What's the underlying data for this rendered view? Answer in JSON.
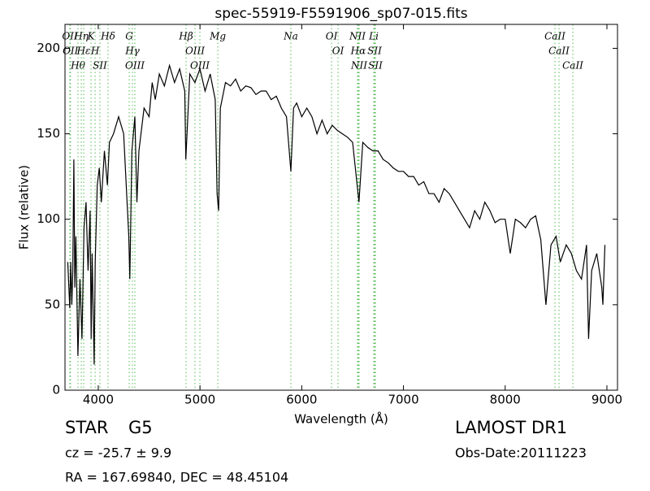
{
  "chart_data": {
    "type": "line",
    "title": "spec-55919-F5591906_sp07-015.fits",
    "x_label": "Wavelength (Å)",
    "y_label": "Flux (relative)",
    "xlim": [
      3673,
      9104
    ],
    "ylim": [
      0,
      214
    ],
    "xticks": [
      4000,
      5000,
      6000,
      7000,
      8000,
      9000
    ],
    "yticks": [
      0,
      50,
      100,
      150,
      200
    ],
    "series": [
      {
        "color": "#000000",
        "x": [
          3700,
          3720,
          3730,
          3740,
          3750,
          3760,
          3770,
          3780,
          3800,
          3820,
          3840,
          3860,
          3880,
          3900,
          3920,
          3930,
          3940,
          3960,
          3970,
          3990,
          4010,
          4030,
          4060,
          4090,
          4110,
          4150,
          4200,
          4250,
          4300,
          4310,
          4330,
          4360,
          4380,
          4400,
          4450,
          4500,
          4530,
          4560,
          4600,
          4650,
          4700,
          4750,
          4800,
          4850,
          4861,
          4900,
          4950,
          5000,
          5050,
          5100,
          5150,
          5168,
          5175,
          5183,
          5200,
          5250,
          5300,
          5350,
          5400,
          5450,
          5500,
          5550,
          5600,
          5650,
          5700,
          5750,
          5800,
          5850,
          5893,
          5920,
          5950,
          6000,
          6050,
          6100,
          6150,
          6200,
          6250,
          6300,
          6350,
          6400,
          6450,
          6500,
          6563,
          6600,
          6650,
          6700,
          6750,
          6800,
          6850,
          6900,
          6950,
          7000,
          7050,
          7100,
          7150,
          7200,
          7250,
          7300,
          7350,
          7400,
          7450,
          7500,
          7550,
          7600,
          7650,
          7700,
          7750,
          7800,
          7850,
          7900,
          7950,
          8000,
          8050,
          8100,
          8150,
          8200,
          8250,
          8300,
          8350,
          8400,
          8450,
          8500,
          8542,
          8600,
          8650,
          8700,
          8750,
          8800,
          8820,
          8850,
          8900,
          8950,
          8960,
          8980
        ],
        "values": [
          75,
          48,
          75,
          50,
          70,
          135,
          60,
          90,
          20,
          65,
          30,
          95,
          110,
          70,
          105,
          30,
          80,
          15,
          75,
          120,
          130,
          110,
          140,
          120,
          145,
          150,
          160,
          150,
          90,
          65,
          140,
          160,
          110,
          140,
          165,
          160,
          180,
          170,
          185,
          178,
          190,
          180,
          188,
          175,
          135,
          185,
          180,
          188,
          175,
          185,
          170,
          115,
          110,
          105,
          165,
          180,
          178,
          182,
          175,
          178,
          177,
          173,
          175,
          175,
          170,
          172,
          165,
          160,
          128,
          165,
          168,
          160,
          165,
          160,
          150,
          158,
          150,
          155,
          152,
          150,
          148,
          145,
          110,
          145,
          142,
          140,
          140,
          135,
          133,
          130,
          128,
          128,
          125,
          125,
          120,
          122,
          115,
          115,
          110,
          118,
          115,
          110,
          105,
          100,
          95,
          105,
          100,
          110,
          105,
          98,
          100,
          100,
          80,
          100,
          98,
          95,
          100,
          102,
          88,
          50,
          85,
          90,
          75,
          85,
          80,
          70,
          65,
          85,
          30,
          70,
          80,
          60,
          50,
          85
        ]
      }
    ],
    "line_color": "#55bb55",
    "lines": [
      {
        "wavelength": 3721,
        "label": "OII"
      },
      {
        "wavelength": 3727,
        "label": "OII"
      },
      {
        "wavelength": 3801,
        "label": "Hθ"
      },
      {
        "wavelength": 3833,
        "label": "Hη"
      },
      {
        "wavelength": 3857,
        "label": "Hε"
      },
      {
        "wavelength": 3929,
        "label": "K"
      },
      {
        "wavelength": 3969,
        "label": "H"
      },
      {
        "wavelength": 4016,
        "label": "SII"
      },
      {
        "wavelength": 4096,
        "label": "Hδ"
      },
      {
        "wavelength": 4304,
        "label": "G"
      },
      {
        "wavelength": 4336,
        "label": "Hγ"
      },
      {
        "wavelength": 4360,
        "label": "OIII"
      },
      {
        "wavelength": 4863,
        "label": "Hβ"
      },
      {
        "wavelength": 4951,
        "label": "OIII"
      },
      {
        "wavelength": 4999,
        "label": "OIII"
      },
      {
        "wavelength": 5175,
        "label": "Mg"
      },
      {
        "wavelength": 5893,
        "label": "Na"
      },
      {
        "wavelength": 6293,
        "label": "OI"
      },
      {
        "wavelength": 6357,
        "label": "OI"
      },
      {
        "wavelength": 6548,
        "label": "NII"
      },
      {
        "wavelength": 6556,
        "label": "Hα"
      },
      {
        "wavelength": 6564,
        "label": "NII"
      },
      {
        "wavelength": 6708,
        "label": "Li"
      },
      {
        "wavelength": 6716,
        "label": "SII"
      },
      {
        "wavelength": 6724,
        "label": "SII"
      },
      {
        "wavelength": 8489,
        "label": "CaII"
      },
      {
        "wavelength": 8529,
        "label": "CaII"
      },
      {
        "wavelength": 8665,
        "label": "CaII"
      }
    ],
    "info": {
      "class": "STAR",
      "subclass": "G5",
      "cz": "cz = -25.7 ± 9.9",
      "coords": "RA = 167.69840, DEC = 48.45104",
      "survey": "LAMOST DR1",
      "obs_date": "Obs-Date:20111223"
    }
  }
}
